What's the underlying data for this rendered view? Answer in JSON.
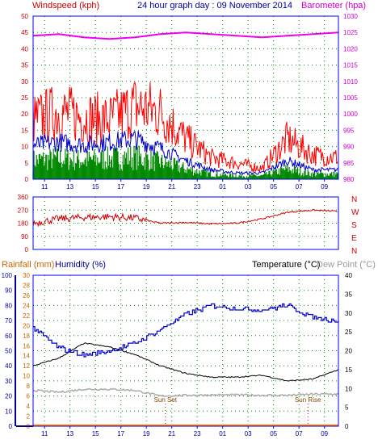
{
  "header": {
    "windspeed_label": "Windspeed (kph)",
    "title": "24 hour graph day : 09 November 2014",
    "barometer_label": "Barometer (hpa)"
  },
  "mid_labels": {
    "rainfall": "Rainfall (mm)",
    "humidity": "Humidity (%)",
    "temperature": "Temperature (°C)",
    "dew_point": "Dew Point (°C)",
    "sun_set": "Sun Set",
    "sun_rise": "Sun Rise"
  },
  "colors": {
    "windspeed": "#ff0000",
    "windavg": "#0000cc",
    "gust_fill": "#008800",
    "barometer": "#ee00ee",
    "direction": "#cc0000",
    "humidity": "#0000cc",
    "temperature": "#000000",
    "dew_point": "#aaaaaa",
    "rainfall": "#ff8800",
    "axis_left": "#cc0000",
    "axis_right": "#cc00cc",
    "axis_blue": "#000099",
    "axis_rain": "#cc6600",
    "axis_dew": "#999999",
    "grid": "#008800",
    "frame": "#0000ff",
    "sun_marker": "#cc0000"
  },
  "chart_data": [
    {
      "type": "line",
      "name_ref": "wind_barometer",
      "x_ticks": [
        "11",
        "13",
        "15",
        "17",
        "19",
        "21",
        "23",
        "01",
        "03",
        "05",
        "07",
        "09"
      ],
      "left_axis": {
        "label": "Windspeed (kph)",
        "ticks": [
          0,
          5,
          10,
          15,
          20,
          25,
          30,
          35,
          40,
          45,
          50
        ],
        "ylim": [
          0,
          50
        ]
      },
      "right_axis": {
        "label": "Barometer (hpa)",
        "ticks": [
          980,
          985,
          990,
          995,
          1000,
          1005,
          1010,
          1015,
          1020,
          1025,
          1030
        ],
        "ylim": [
          980,
          1030
        ]
      },
      "series": [
        {
          "key": "wind_max",
          "hours": [
            0,
            2,
            4,
            6,
            8,
            10,
            12,
            14,
            16,
            18,
            20,
            22,
            24
          ],
          "values": [
            22,
            25,
            23,
            22,
            27,
            25,
            15,
            8,
            6,
            4,
            15,
            9,
            8
          ]
        },
        {
          "key": "wind_avg",
          "hours": [
            0,
            2,
            4,
            6,
            8,
            10,
            12,
            14,
            16,
            18,
            20,
            22,
            24
          ],
          "values": [
            11,
            12,
            11,
            12,
            13,
            10,
            6,
            3,
            2,
            2,
            6,
            3,
            3
          ]
        },
        {
          "key": "barometer",
          "hours": [
            0,
            2,
            4,
            6,
            8,
            10,
            12,
            14,
            16,
            18,
            20,
            22,
            24
          ],
          "values": [
            1024,
            1024.5,
            1023.5,
            1023,
            1023.5,
            1024.5,
            1025,
            1024.5,
            1024,
            1023.5,
            1024,
            1024.5,
            1025
          ]
        }
      ]
    },
    {
      "type": "scatter",
      "name_ref": "direction",
      "x_ticks": [
        "11",
        "13",
        "15",
        "17",
        "19",
        "21",
        "23",
        "01",
        "03",
        "05",
        "07",
        "09"
      ],
      "left_axis": {
        "ticks": [
          0,
          90,
          180,
          270,
          360
        ],
        "ylim": [
          0,
          360
        ]
      },
      "right_axis": {
        "ticks": [
          "N",
          "W",
          "S",
          "E",
          "N"
        ]
      },
      "series": [
        {
          "key": "direction",
          "hours": [
            0,
            2,
            4,
            6,
            8,
            10,
            12,
            14,
            16,
            18,
            20,
            22,
            24
          ],
          "values": [
            180,
            210,
            220,
            225,
            215,
            180,
            185,
            175,
            180,
            210,
            255,
            270,
            260
          ]
        }
      ]
    },
    {
      "type": "line",
      "name_ref": "temp_humidity",
      "x_ticks": [
        "11",
        "13",
        "15",
        "17",
        "19",
        "21",
        "23",
        "01",
        "03",
        "05",
        "07",
        "09"
      ],
      "left_outer_axis": {
        "label": "Rainfall (mm)",
        "ticks": [
          0,
          2,
          4,
          6,
          8,
          10,
          12,
          14,
          16,
          18,
          20,
          22,
          24,
          26,
          28,
          30
        ],
        "ylim": [
          0,
          30
        ]
      },
      "left_inner_axis": {
        "label": "Humidity (%)",
        "ticks": [
          0,
          10,
          20,
          30,
          40,
          50,
          60,
          70,
          80,
          90,
          100
        ],
        "ylim": [
          0,
          100
        ]
      },
      "right_axis": {
        "label": "Temperature (°C)",
        "ticks": [
          0,
          5,
          10,
          15,
          20,
          25,
          30,
          35,
          40
        ],
        "ylim": [
          0,
          40
        ]
      },
      "series": [
        {
          "key": "humidity",
          "hours": [
            0,
            2,
            4,
            6,
            8,
            10,
            12,
            14,
            16,
            18,
            20,
            22,
            24
          ],
          "values": [
            65,
            52,
            47,
            50,
            55,
            64,
            74,
            80,
            78,
            77,
            80,
            72,
            70
          ]
        },
        {
          "key": "temperature",
          "hours": [
            0,
            2,
            4,
            6,
            8,
            10,
            12,
            14,
            16,
            18,
            20,
            22,
            24
          ],
          "values": [
            16,
            18,
            22,
            21,
            19,
            16,
            14,
            13,
            13,
            13.5,
            12,
            12.5,
            15
          ]
        },
        {
          "key": "dew_point",
          "hours": [
            0,
            2,
            4,
            6,
            8,
            10,
            12,
            14,
            16,
            18,
            20,
            22,
            24
          ],
          "values": [
            9.5,
            9,
            9.8,
            9.8,
            9.5,
            8,
            8.2,
            8.3,
            8.3,
            8.2,
            8.2,
            8.5,
            8.5
          ]
        },
        {
          "key": "rainfall",
          "hours": [
            0,
            24
          ],
          "values": [
            0,
            0
          ]
        }
      ]
    }
  ]
}
